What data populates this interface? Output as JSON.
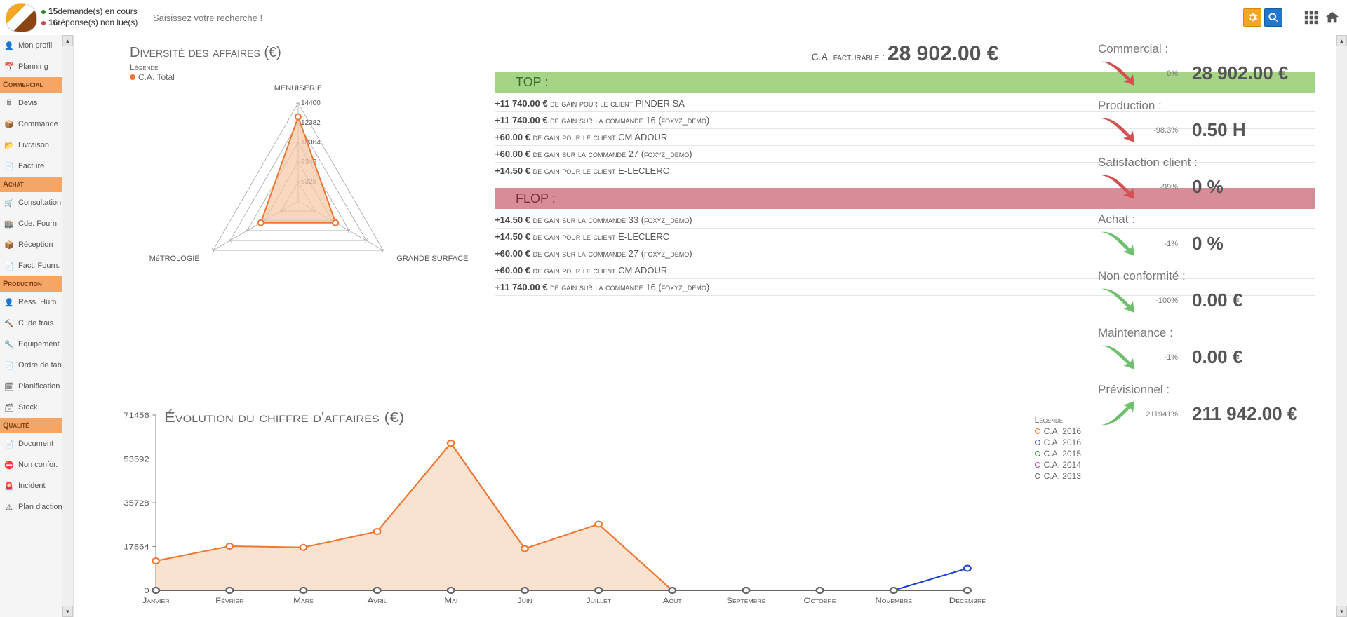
{
  "topbar": {
    "notif1_count": "15",
    "notif1_text": " demande(s) en cours",
    "notif2_count": "16",
    "notif2_text": " réponse(s) non lue(s)",
    "search_placeholder": "Saisissez votre recherche !",
    "notif1_color": "#2a8a2a",
    "notif2_color": "#c94a4a"
  },
  "sidebar": {
    "items": [
      {
        "type": "item",
        "label": "Mon profil",
        "icon": "user"
      },
      {
        "type": "item",
        "label": "Planning",
        "icon": "calendar"
      },
      {
        "type": "section",
        "label": "Commercial"
      },
      {
        "type": "item",
        "label": "Devis",
        "icon": "calc"
      },
      {
        "type": "item",
        "label": "Commande",
        "icon": "box"
      },
      {
        "type": "item",
        "label": "Livraison",
        "icon": "arrow"
      },
      {
        "type": "item",
        "label": "Facture",
        "icon": "doc"
      },
      {
        "type": "section",
        "label": "Achat"
      },
      {
        "type": "item",
        "label": "Consultation",
        "icon": "cart"
      },
      {
        "type": "item",
        "label": "Cde. Fourn.",
        "icon": "store"
      },
      {
        "type": "item",
        "label": "Réception",
        "icon": "pack"
      },
      {
        "type": "item",
        "label": "Fact. Fourn.",
        "icon": "doc"
      },
      {
        "type": "section",
        "label": "Production"
      },
      {
        "type": "item",
        "label": "Ress. Hum.",
        "icon": "user"
      },
      {
        "type": "item",
        "label": "C. de frais",
        "icon": "hammer"
      },
      {
        "type": "item",
        "label": "Equipement",
        "icon": "wrench"
      },
      {
        "type": "item",
        "label": "Ordre de fab.",
        "icon": "doc"
      },
      {
        "type": "item",
        "label": "Planification",
        "icon": "cal2"
      },
      {
        "type": "item",
        "label": "Stock",
        "icon": "shelf"
      },
      {
        "type": "section",
        "label": "Qualité"
      },
      {
        "type": "item",
        "label": "Document",
        "icon": "doc"
      },
      {
        "type": "item",
        "label": "Non confor.",
        "icon": "stop"
      },
      {
        "type": "item",
        "label": "Incident",
        "icon": "alert"
      },
      {
        "type": "item",
        "label": "Plan d'actions",
        "icon": "warn"
      }
    ]
  },
  "ca": {
    "prefix": "C.A. facturable : ",
    "value": "28 902.00 €"
  },
  "radar": {
    "title": "Diversité des affaires (€)",
    "legend_title": "Légende",
    "series_label": "C.A. Total",
    "series_color": "#ee7733",
    "fill_color": "#f7c6a3",
    "axes": [
      "MENUISERIE",
      "GRANDE SURFACE",
      "MéTROLOGIE"
    ],
    "rings": [
      "6328",
      "8346",
      "10364",
      "12382",
      "14400"
    ],
    "values": [
      12382,
      6328,
      6328
    ],
    "max": 14400,
    "grid_color": "#999999",
    "label_fontsize": 10
  },
  "top": {
    "header": "TOP :",
    "items": [
      {
        "amount": "+11 740.00 €",
        "text": "de gain pour le client PINDER SA"
      },
      {
        "amount": "+11 740.00 €",
        "text": "de gain sur la commande 16 (foxyz_demo)"
      },
      {
        "amount": "+60.00 €",
        "text": "de gain pour le client CM ADOUR"
      },
      {
        "amount": "+60.00 €",
        "text": "de gain sur la commande 27 (foxyz_demo)"
      },
      {
        "amount": "+14.50 €",
        "text": "de gain pour le client E-LECLERC"
      }
    ]
  },
  "flop": {
    "header": "FLOP :",
    "items": [
      {
        "amount": "+14.50 €",
        "text": "de gain sur la commande 33 (foxyz_demo)"
      },
      {
        "amount": "+14.50 €",
        "text": "de gain pour le client E-LECLERC"
      },
      {
        "amount": "+60.00 €",
        "text": "de gain sur la commande 27 (foxyz_demo)"
      },
      {
        "amount": "+60.00 €",
        "text": "de gain pour le client CM ADOUR"
      },
      {
        "amount": "+11 740.00 €",
        "text": "de gain sur la commande 16 (foxyz_demo)"
      }
    ]
  },
  "kpis": [
    {
      "label": "Commercial :",
      "pct": "0%",
      "value": "28 902.00 €",
      "dir": "down",
      "color": "#d35151"
    },
    {
      "label": "Production :",
      "pct": "-98.3%",
      "value": "0.50 H",
      "dir": "down",
      "color": "#d35151"
    },
    {
      "label": "Satisfaction client :",
      "pct": "-99%",
      "value": "0 %",
      "dir": "down",
      "color": "#d35151"
    },
    {
      "label": "Achat :",
      "pct": "-1%",
      "value": "0 %",
      "dir": "down",
      "color": "#6fbf6f"
    },
    {
      "label": "Non conformité :",
      "pct": "-100%",
      "value": "0.00 €",
      "dir": "down",
      "color": "#6fbf6f"
    },
    {
      "label": "Maintenance :",
      "pct": "-1%",
      "value": "0.00 €",
      "dir": "down",
      "color": "#6fbf6f"
    },
    {
      "label": "Prévisionnel :",
      "pct": "211941%",
      "value": "211 942.00 €",
      "dir": "up",
      "color": "#6fbf6f"
    }
  ],
  "linechart": {
    "title": "Évolution du chiffre d'affaires (€)",
    "legend_title": "Légende",
    "x_labels": [
      "Janvier",
      "Février",
      "Mars",
      "Avril",
      "Mai",
      "Juin",
      "Juillet",
      "Aout",
      "Septembre",
      "Octobre",
      "Novembre",
      "Décembre"
    ],
    "y_ticks": [
      0,
      17864,
      35728,
      53592,
      71456
    ],
    "ymax": 71456,
    "grid_color": "#888",
    "series": [
      {
        "label": "C.A. 2016",
        "color": "#ee7733",
        "fill": "#f7d5bc",
        "data": [
          12000,
          18000,
          17500,
          24000,
          60000,
          17000,
          27000,
          0,
          0,
          0,
          0,
          0
        ]
      },
      {
        "label": "C.A. 2016",
        "color": "#2244cc",
        "fill": "",
        "data": [
          0,
          0,
          0,
          0,
          0,
          0,
          0,
          0,
          0,
          0,
          0,
          9000
        ]
      },
      {
        "label": "C.A. 2015",
        "color": "#2a8a2a",
        "fill": "",
        "data": [
          0,
          0,
          0,
          0,
          0,
          0,
          0,
          0,
          0,
          0,
          0,
          0
        ]
      },
      {
        "label": "C.A. 2014",
        "color": "#c040c0",
        "fill": "",
        "data": [
          0,
          0,
          0,
          0,
          0,
          0,
          0,
          0,
          0,
          0,
          0,
          0
        ]
      },
      {
        "label": "C.A. 2013",
        "color": "#666666",
        "fill": "",
        "data": [
          0,
          0,
          0,
          0,
          0,
          0,
          0,
          0,
          0,
          0,
          0,
          0
        ]
      }
    ]
  }
}
